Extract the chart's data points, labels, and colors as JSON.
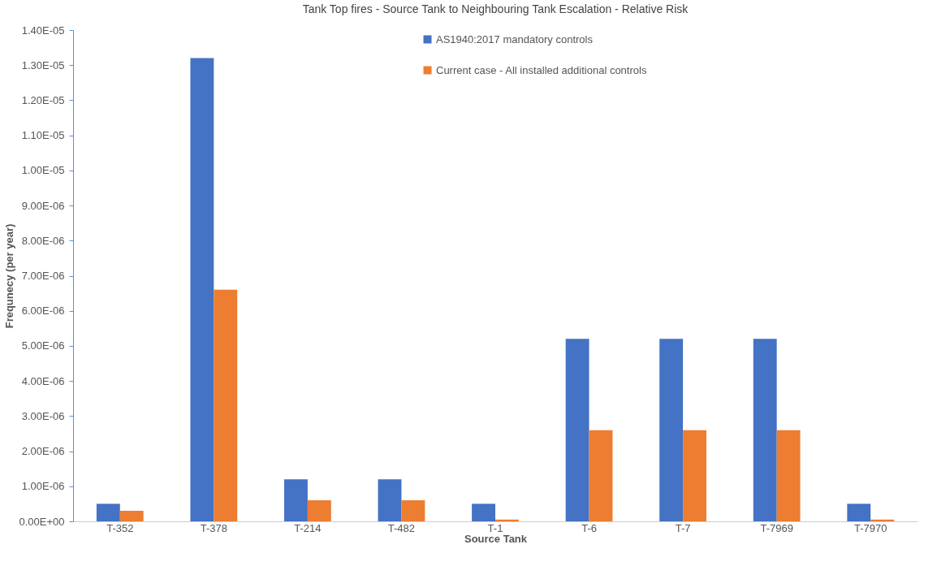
{
  "chart_data": {
    "type": "bar",
    "title": "Tank Top fires - Source Tank to Neighbouring Tank Escalation - Relative Risk",
    "xlabel": "Source Tank",
    "ylabel": "Frequnecy (per year)",
    "categories": [
      "T-352",
      "T-378",
      "T-214",
      "T-482",
      "T-1",
      "T-6",
      "T-7",
      "T-7969",
      "T-7970"
    ],
    "series": [
      {
        "name": "AS1940:2017 mandatory controls",
        "color": "#4472c4",
        "values": [
          5e-07,
          1.32e-05,
          1.2e-06,
          1.2e-06,
          5e-07,
          5.2e-06,
          5.2e-06,
          5.2e-06,
          5e-07
        ]
      },
      {
        "name": "Current case - All installed additional controls",
        "color": "#ed7d31",
        "values": [
          3e-07,
          6.6e-06,
          6e-07,
          6e-07,
          5e-08,
          2.6e-06,
          2.6e-06,
          2.6e-06,
          5e-08
        ]
      }
    ],
    "ylim": [
      0,
      1.4e-05
    ],
    "yticks": [
      {
        "value": 0,
        "label": "0.00E+00"
      },
      {
        "value": 1e-06,
        "label": "1.00E-06"
      },
      {
        "value": 2e-06,
        "label": "2.00E-06"
      },
      {
        "value": 3e-06,
        "label": "3.00E-06"
      },
      {
        "value": 4e-06,
        "label": "4.00E-06"
      },
      {
        "value": 5e-06,
        "label": "5.00E-06"
      },
      {
        "value": 6e-06,
        "label": "6.00E-06"
      },
      {
        "value": 7e-06,
        "label": "7.00E-06"
      },
      {
        "value": 8e-06,
        "label": "8.00E-06"
      },
      {
        "value": 9e-06,
        "label": "9.00E-06"
      },
      {
        "value": 1e-05,
        "label": "1.00E-05"
      },
      {
        "value": 1.1e-05,
        "label": "1.10E-05"
      },
      {
        "value": 1.2e-05,
        "label": "1.20E-05"
      },
      {
        "value": 1.3e-05,
        "label": "1.30E-05"
      },
      {
        "value": 1.4e-05,
        "label": "1.40E-05"
      }
    ],
    "grid": false,
    "legend": "top"
  }
}
